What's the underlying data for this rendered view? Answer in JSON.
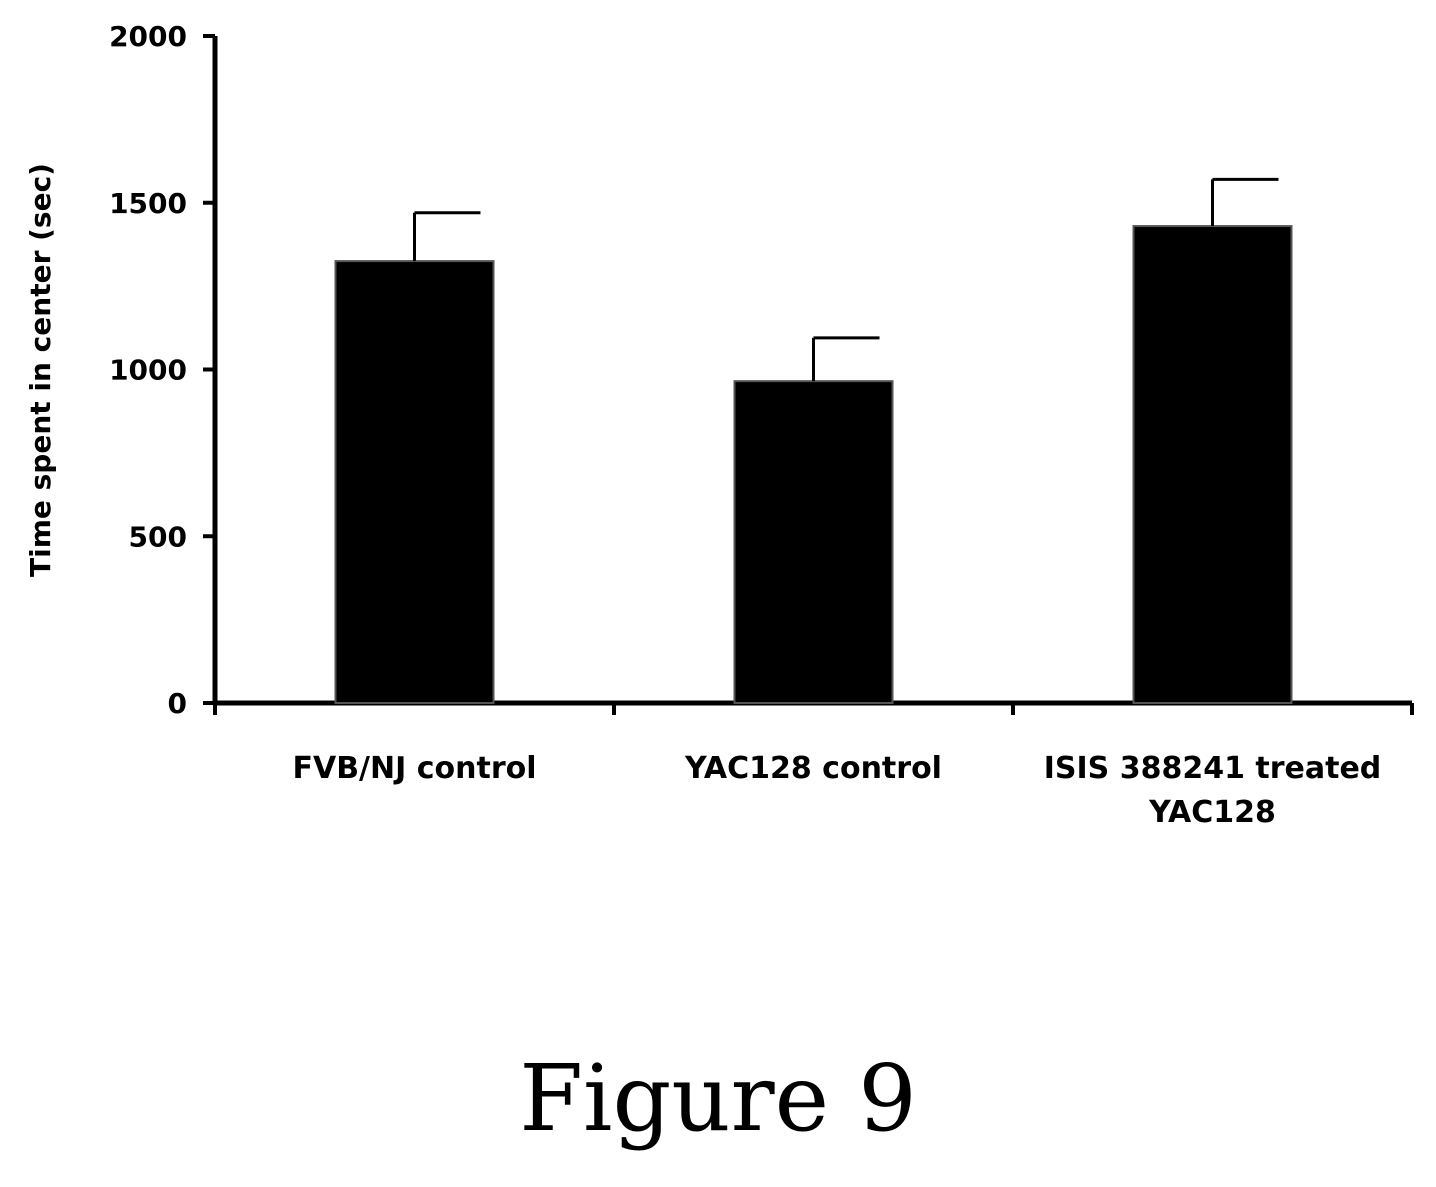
{
  "figure_caption": "Figure 9",
  "chart_data": {
    "type": "bar",
    "categories": [
      [
        "FVB/NJ control"
      ],
      [
        "YAC128 control"
      ],
      [
        "ISIS 388241 treated",
        "YAC128"
      ]
    ],
    "values": [
      1325,
      965,
      1430
    ],
    "error": [
      145,
      130,
      140
    ],
    "title": "",
    "xlabel": "",
    "ylabel": "Time spent in center (sec)",
    "ylim": [
      0,
      2000
    ],
    "yticks": [
      0,
      500,
      1000,
      1500,
      2000
    ],
    "grid": false,
    "bar_color": "#000000"
  }
}
